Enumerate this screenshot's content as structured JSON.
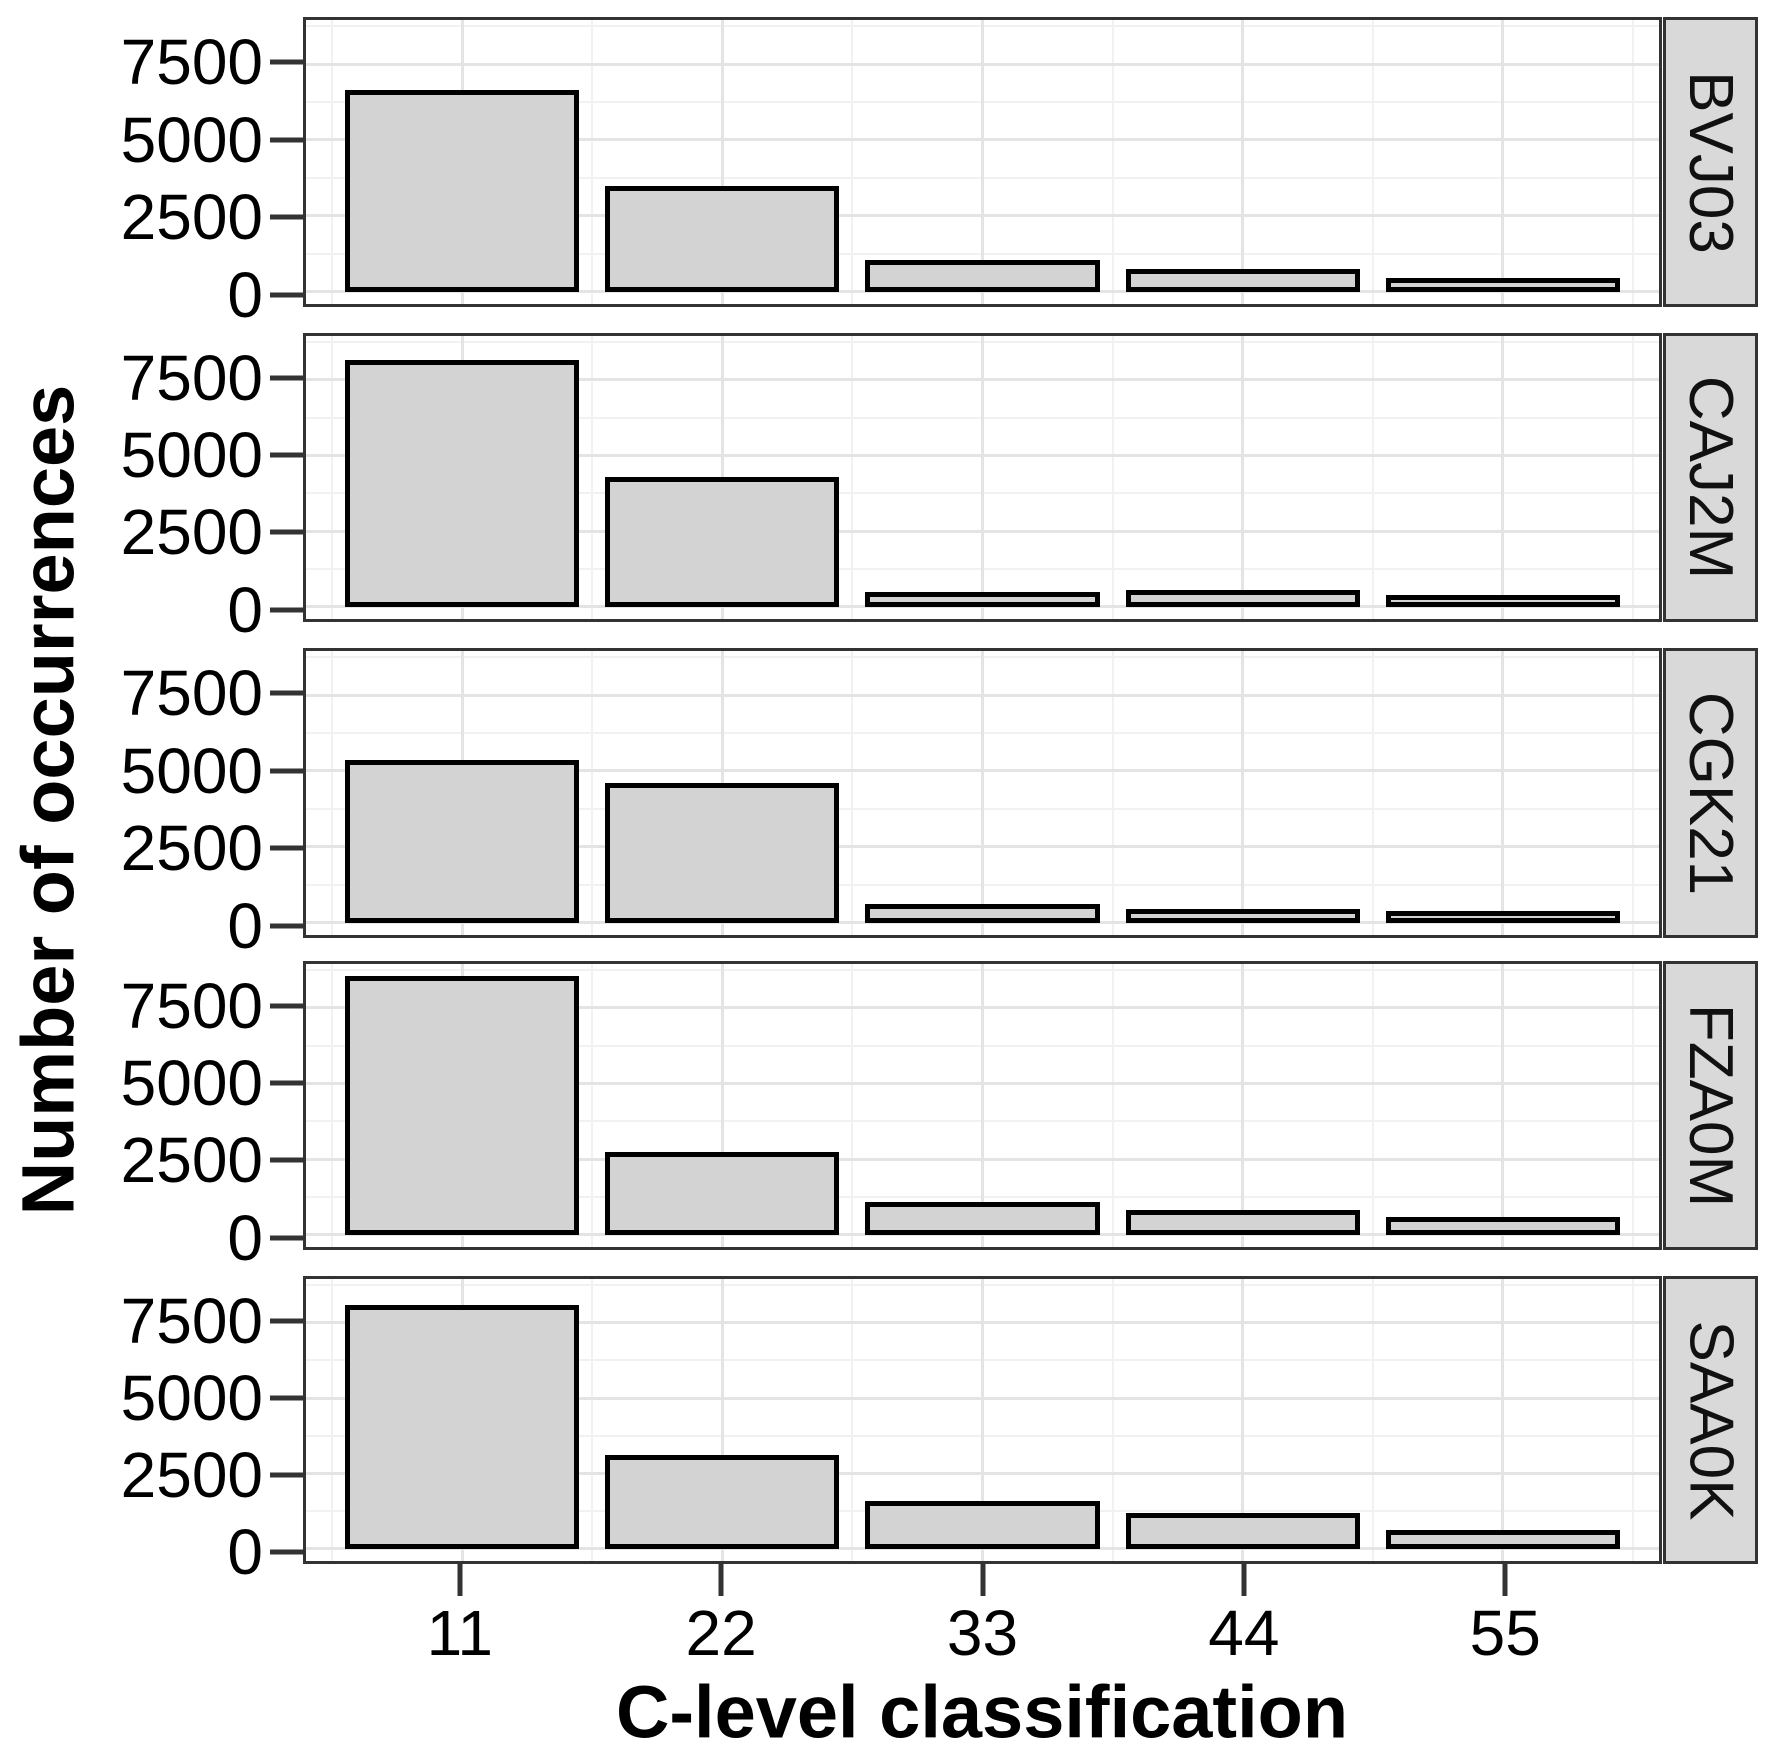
{
  "figure": {
    "y_axis_title": "Number of occurrences",
    "x_axis_title": "C-level classification"
  },
  "chart_data": {
    "type": "bar",
    "faceted": true,
    "facet_strip_side": "right",
    "title": "",
    "xlabel": "C-level classification",
    "ylabel": "Number of occurrences",
    "categories": [
      "11",
      "22",
      "33",
      "44",
      "55"
    ],
    "y_tick_values": [
      0,
      2500,
      5000,
      7500
    ],
    "y_tick_labels": [
      "0",
      "2500",
      "5000",
      "7500"
    ],
    "y_minor_tick_values": [
      1250,
      3750,
      6250,
      8750
    ],
    "ylim": [
      0,
      8950
    ],
    "grid": "major and minor, light gray on white (theme_bw)",
    "legend": "none",
    "series": [
      {
        "name": "BVJ03",
        "values": [
          6650,
          3480,
          1060,
          740,
          450
        ]
      },
      {
        "name": "CAJ2M",
        "values": [
          8150,
          4300,
          500,
          550,
          400
        ]
      },
      {
        "name": "CGK21",
        "values": [
          5350,
          4600,
          620,
          450,
          400
        ]
      },
      {
        "name": "FZA0M",
        "values": [
          8550,
          2750,
          1100,
          830,
          580
        ]
      },
      {
        "name": "SAA0K",
        "values": [
          8100,
          3100,
          1580,
          1200,
          630
        ]
      }
    ],
    "colors": {
      "bar_fill": "#d3d3d3",
      "bar_stroke": "#000000",
      "strip_background": "#d9d9d9",
      "panel_border": "#333333",
      "grid_major": "#e4e4e4",
      "grid_minor": "#f1f1f1",
      "text": "#000000"
    }
  }
}
